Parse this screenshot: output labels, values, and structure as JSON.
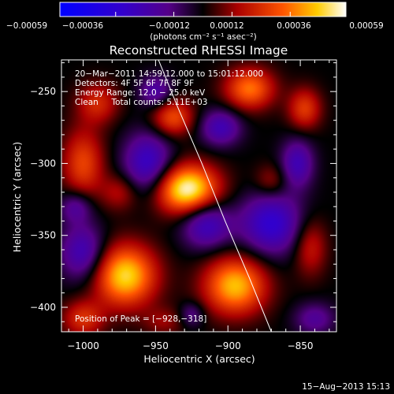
{
  "chart_data": {
    "type": "heatmap",
    "title": "Reconstructed RHESSI Image",
    "xlabel": "Heliocentric X (arcsec)",
    "ylabel": "Heliocentric Y (arcsec)",
    "xlim": [
      -1015,
      -825
    ],
    "ylim": [
      -417,
      -228
    ],
    "xticks": [
      -1000,
      -950,
      -900,
      -850
    ],
    "yticks": [
      -250,
      -300,
      -350,
      -400
    ],
    "xtick_labels": [
      "−1000",
      "−950",
      "−900",
      "−850"
    ],
    "ytick_labels": [
      "−250",
      "−300",
      "−350",
      "−400"
    ],
    "colorbar": {
      "label": "(photons cm⁻² s⁻¹ asec⁻²)",
      "range": [
        -0.00059,
        0.00059
      ],
      "ticks": [
        -0.00059,
        -0.00036,
        -0.00012,
        0.00012,
        0.00036,
        0.00059
      ],
      "tick_labels": [
        "−0.00059",
        "−0.00036",
        "−0.00012",
        "0.00012",
        "0.00036",
        "0.00059"
      ]
    },
    "annotations": [
      "20−Mar−2011 14:59:12.000 to 15:01:12.000",
      "Detectors: 4F 5F 6F 7F 8F 9F",
      "Energy Range: 12.0 − 25.0 keV",
      "Clean     Total counts: 5.11E+03"
    ],
    "peak_label": "Position of Peak = [−928,−318]",
    "peak": [
      -928,
      -318
    ],
    "limb_curve": [
      [
        -948,
        -228
      ],
      [
        -935,
        -260
      ],
      [
        -918,
        -300
      ],
      [
        -902,
        -340
      ],
      [
        -885,
        -380
      ],
      [
        -870,
        -417
      ]
    ],
    "blobs": [
      {
        "x": -928,
        "y": -318,
        "amp": 0.00059,
        "sx": 15,
        "sy": 12
      },
      {
        "x": -971,
        "y": -378,
        "amp": 0.0005,
        "sx": 15,
        "sy": 15
      },
      {
        "x": -895,
        "y": -385,
        "amp": 0.00046,
        "sx": 15,
        "sy": 14
      },
      {
        "x": -938,
        "y": -268,
        "amp": 0.0003,
        "sx": 10,
        "sy": 9
      },
      {
        "x": -885,
        "y": -248,
        "amp": 0.00036,
        "sx": 12,
        "sy": 10
      },
      {
        "x": -847,
        "y": -262,
        "amp": 0.00026,
        "sx": 8,
        "sy": 10
      },
      {
        "x": -1000,
        "y": -300,
        "amp": 0.00028,
        "sx": 10,
        "sy": 17
      },
      {
        "x": -990,
        "y": -258,
        "amp": 0.00022,
        "sx": 10,
        "sy": 10
      },
      {
        "x": -1000,
        "y": -408,
        "amp": 0.00024,
        "sx": 10,
        "sy": 9
      },
      {
        "x": -975,
        "y": -320,
        "amp": 0.00016,
        "sx": 9,
        "sy": 9
      },
      {
        "x": -843,
        "y": -358,
        "amp": 0.0002,
        "sx": 8,
        "sy": 14
      },
      {
        "x": -870,
        "y": -312,
        "amp": 0.00014,
        "sx": 8,
        "sy": 8
      },
      {
        "x": -944,
        "y": -410,
        "amp": 0.00012,
        "sx": 10,
        "sy": 7
      },
      {
        "x": -955,
        "y": -300,
        "amp": -0.00032,
        "sx": 12,
        "sy": 15
      },
      {
        "x": -915,
        "y": -342,
        "amp": -0.0003,
        "sx": 12,
        "sy": 12
      },
      {
        "x": -870,
        "y": -342,
        "amp": -0.00034,
        "sx": 15,
        "sy": 15
      },
      {
        "x": -1000,
        "y": -362,
        "amp": -0.00028,
        "sx": 11,
        "sy": 14
      },
      {
        "x": -905,
        "y": -275,
        "amp": -0.00026,
        "sx": 10,
        "sy": 9
      },
      {
        "x": -1005,
        "y": -330,
        "amp": -0.0002,
        "sx": 8,
        "sy": 8
      },
      {
        "x": -852,
        "y": -300,
        "amp": -0.00026,
        "sx": 8,
        "sy": 12
      },
      {
        "x": -950,
        "y": -250,
        "amp": -0.00022,
        "sx": 8,
        "sy": 8
      },
      {
        "x": -840,
        "y": -408,
        "amp": -0.00018,
        "sx": 10,
        "sy": 8
      },
      {
        "x": -925,
        "y": -405,
        "amp": -0.00016,
        "sx": 6,
        "sy": 6
      }
    ]
  },
  "footer_date": "15−Aug−2013 15:13"
}
